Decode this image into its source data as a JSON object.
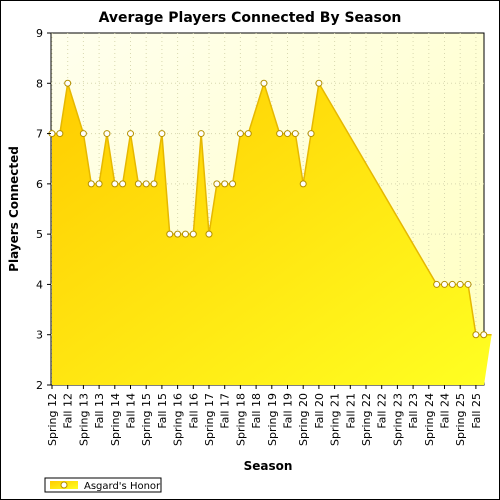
{
  "chart_data": {
    "type": "area",
    "title": "Average Players Connected By Season",
    "xlabel": "Season",
    "ylabel": "Players Connected",
    "ylim": [
      2,
      9
    ],
    "yticks": [
      2,
      3,
      4,
      5,
      6,
      7,
      8,
      9
    ],
    "grid": true,
    "legend_position": "bottom-left",
    "x_tick_labels": [
      "Spring 12",
      "Fall 12",
      "Spring 13",
      "Fall 13",
      "Spring 14",
      "Fall 14",
      "Spring 15",
      "Fall 15",
      "Spring 16",
      "Fall 16",
      "Spring 17",
      "Fall 17",
      "Spring 18",
      "Fall 18",
      "Spring 19",
      "Fall 19",
      "Spring 20",
      "Fall 20",
      "Spring 21",
      "Fall 21",
      "Spring 22",
      "Fall 22",
      "Spring 23",
      "Fall 23",
      "Spring 24",
      "Fall 24",
      "Spring 25",
      "Fall 25"
    ],
    "x_range": [
      0,
      54
    ],
    "series": [
      {
        "name": "Asgard's Honor",
        "color": "#ffd700",
        "points": [
          {
            "x": 0,
            "y": 7
          },
          {
            "x": 1,
            "y": 7
          },
          {
            "x": 2,
            "y": 8
          },
          {
            "x": 4,
            "y": 7
          },
          {
            "x": 5,
            "y": 6
          },
          {
            "x": 6,
            "y": 6
          },
          {
            "x": 7,
            "y": 7
          },
          {
            "x": 8,
            "y": 6
          },
          {
            "x": 9,
            "y": 6
          },
          {
            "x": 10,
            "y": 7
          },
          {
            "x": 11,
            "y": 6
          },
          {
            "x": 12,
            "y": 6
          },
          {
            "x": 13,
            "y": 6
          },
          {
            "x": 14,
            "y": 7
          },
          {
            "x": 15,
            "y": 5
          },
          {
            "x": 16,
            "y": 5
          },
          {
            "x": 17,
            "y": 5
          },
          {
            "x": 18,
            "y": 5
          },
          {
            "x": 19,
            "y": 7
          },
          {
            "x": 20,
            "y": 5
          },
          {
            "x": 21,
            "y": 6
          },
          {
            "x": 22,
            "y": 6
          },
          {
            "x": 23,
            "y": 6
          },
          {
            "x": 24,
            "y": 7
          },
          {
            "x": 25,
            "y": 7
          },
          {
            "x": 27,
            "y": 8
          },
          {
            "x": 29,
            "y": 7
          },
          {
            "x": 30,
            "y": 7
          },
          {
            "x": 31,
            "y": 7
          },
          {
            "x": 32,
            "y": 6
          },
          {
            "x": 33,
            "y": 7
          },
          {
            "x": 34,
            "y": 8
          },
          {
            "x": 49,
            "y": 4
          },
          {
            "x": 50,
            "y": 4
          },
          {
            "x": 51,
            "y": 4
          },
          {
            "x": 52,
            "y": 4
          },
          {
            "x": 53,
            "y": 4
          },
          {
            "x": 54,
            "y": 3
          },
          {
            "x": 55,
            "y": 3
          },
          {
            "x": 56,
            "y": 3
          }
        ]
      }
    ]
  }
}
